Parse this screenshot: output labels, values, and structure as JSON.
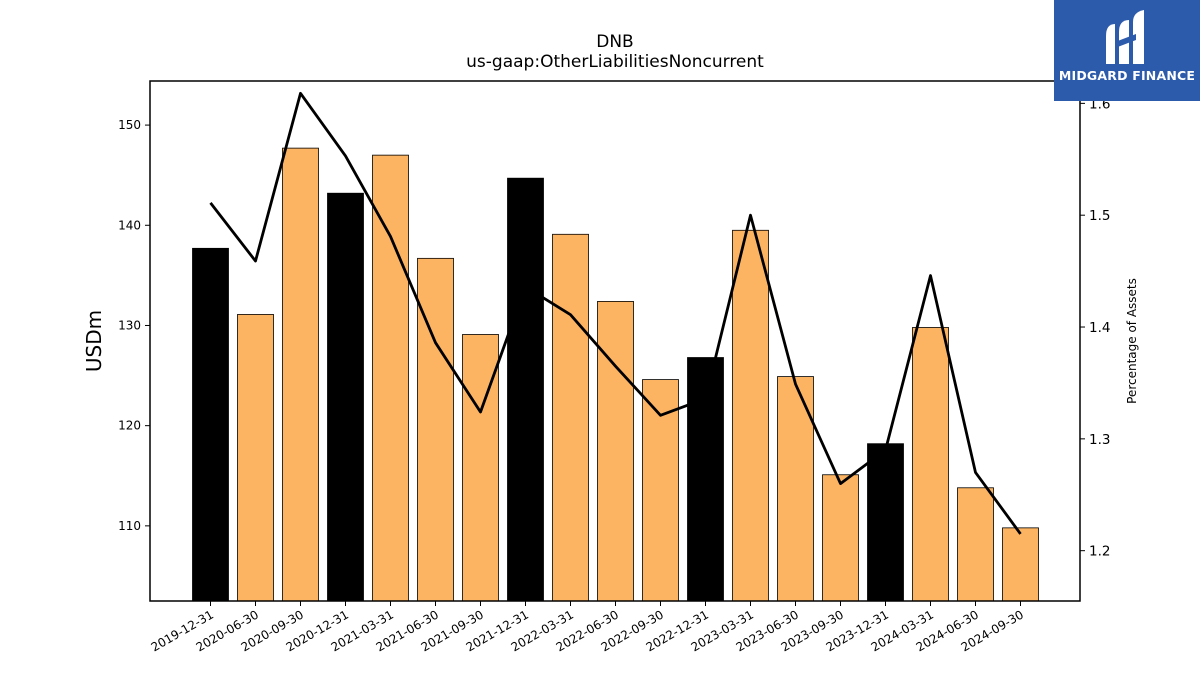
{
  "chart_data": {
    "type": "bar",
    "title": "DNB",
    "subtitle": "us-gaap:OtherLiabilitiesNoncurrent",
    "ylabel": "USDm",
    "y2label": "Percentage of Assets",
    "categories": [
      "2019-12-31",
      "2020-06-30",
      "2020-09-30",
      "2020-12-31",
      "2021-03-31",
      "2021-06-30",
      "2021-09-30",
      "2021-12-31",
      "2022-03-31",
      "2022-06-30",
      "2022-09-30",
      "2022-12-31",
      "2023-03-31",
      "2023-06-30",
      "2023-09-30",
      "2023-12-31",
      "2024-03-31",
      "2024-06-30",
      "2024-09-30"
    ],
    "series": [
      {
        "type": "bar",
        "axis": "left",
        "values": [
          137.7,
          131.1,
          147.7,
          143.2,
          147.0,
          136.7,
          129.1,
          144.7,
          139.1,
          132.4,
          124.6,
          126.8,
          139.5,
          124.9,
          115.1,
          118.2,
          129.8,
          113.8,
          109.8
        ],
        "colors": [
          "#000000",
          "#fdb462",
          "#fdb462",
          "#000000",
          "#fdb462",
          "#fdb462",
          "#fdb462",
          "#000000",
          "#fdb462",
          "#fdb462",
          "#fdb462",
          "#000000",
          "#fdb462",
          "#fdb462",
          "#fdb462",
          "#000000",
          "#fdb462",
          "#fdb462",
          "#fdb462"
        ]
      },
      {
        "type": "line",
        "axis": "right",
        "values": [
          1.511,
          1.459,
          1.609,
          1.553,
          1.481,
          1.386,
          1.324,
          1.436,
          1.411,
          1.365,
          1.321,
          1.336,
          1.5,
          1.349,
          1.26,
          1.29,
          1.446,
          1.27,
          1.215
        ]
      }
    ],
    "ylim": [
      102.5,
      154.4
    ],
    "y_ticks": [
      110,
      120,
      130,
      140,
      150
    ],
    "y2lim": [
      1.155,
      1.62
    ],
    "y2_ticks": [
      "1.2",
      "1.3",
      "1.4",
      "1.5",
      "1.6"
    ],
    "grid": false,
    "legend": "none"
  },
  "watermark": {
    "text": "MIDGARD FINANCE",
    "background": "#2d5bab"
  }
}
